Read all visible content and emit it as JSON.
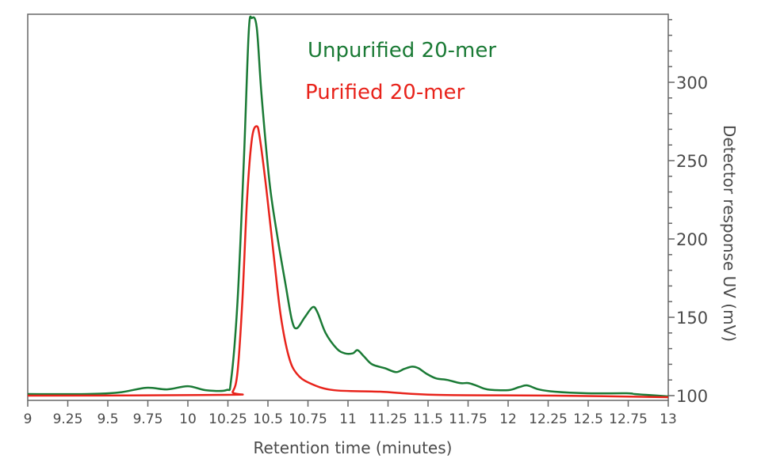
{
  "chart_data": {
    "type": "line",
    "title": "",
    "xlabel": "Retention time (minutes)",
    "ylabel": "Detector response UV (mV)",
    "xlim": [
      9,
      13
    ],
    "ylim": [
      100,
      343
    ],
    "y_axis_side": "right",
    "grid": false,
    "legend_placement": "top-center",
    "x_ticks": [
      "9",
      "9.25",
      "9.5",
      "9.75",
      "10",
      "10.25",
      "10.5",
      "10.75",
      "11",
      "11.25",
      "11.5",
      "11.75",
      "12",
      "12.25",
      "12.5",
      "12.75",
      "13"
    ],
    "y_ticks": [
      "100",
      "150",
      "200",
      "250",
      "300"
    ],
    "series": [
      {
        "name": "Unpurified 20-mer",
        "color": "#1a7a35",
        "x": [
          9.0,
          9.37,
          9.57,
          9.74,
          9.87,
          10.0,
          10.11,
          10.24,
          10.27,
          10.31,
          10.35,
          10.38,
          10.4,
          10.43,
          10.46,
          10.51,
          10.56,
          10.61,
          10.65,
          10.68,
          10.73,
          10.78,
          10.81,
          10.86,
          10.93,
          10.98,
          11.03,
          11.06,
          11.1,
          11.15,
          11.23,
          11.3,
          11.35,
          11.4,
          11.44,
          11.49,
          11.55,
          11.62,
          11.7,
          11.75,
          11.8,
          11.87,
          12.0,
          12.07,
          12.12,
          12.19,
          12.29,
          12.49,
          12.74,
          12.79,
          12.86,
          13.0
        ],
        "y": [
          101,
          101,
          102,
          105,
          104,
          106,
          103.5,
          103.5,
          110,
          160,
          251,
          332,
          341,
          335,
          292,
          236,
          201,
          171,
          148,
          143,
          150,
          156.5,
          153,
          140,
          130,
          127,
          127,
          129,
          125,
          120,
          117.5,
          115,
          117,
          118.5,
          117.5,
          114,
          111,
          110,
          108,
          108,
          106.5,
          104,
          103.5,
          105.5,
          106.5,
          104,
          102.5,
          101.5,
          101.5,
          101,
          100.5,
          99.5
        ]
      },
      {
        "name": "Purified 20-mer",
        "color": "#e8231b",
        "x": [
          9.0,
          10.24,
          10.28,
          10.31,
          10.34,
          10.37,
          10.4,
          10.43,
          10.45,
          10.49,
          10.54,
          10.58,
          10.63,
          10.68,
          10.76,
          10.91,
          11.2,
          11.55,
          12.29,
          13.0
        ],
        "y": [
          100,
          100.5,
          102.5,
          115,
          160,
          226,
          264,
          272,
          264,
          232,
          186,
          151,
          125,
          114,
          108,
          103.5,
          102.5,
          100.5,
          100,
          99
        ]
      }
    ]
  }
}
